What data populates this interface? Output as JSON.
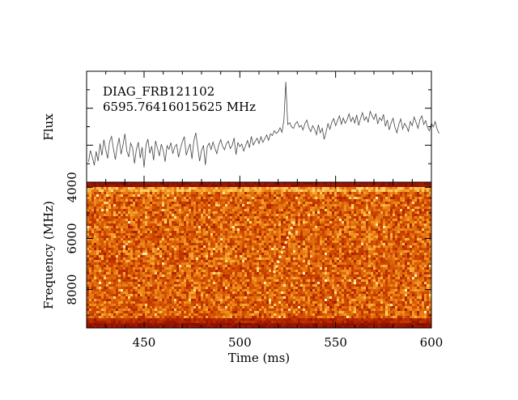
{
  "chart_data": [
    {
      "type": "line",
      "panel": "flux",
      "ylabel": "Flux",
      "annotations": [
        "DIAG_FRB121102",
        "6595.76416015625 MHz"
      ],
      "xlim": [
        420,
        600
      ],
      "x_start": 421,
      "x_step": 1,
      "values": [
        -0.33,
        0.05,
        -0.18,
        -0.45,
        0.02,
        -0.31,
        0.28,
        -0.12,
        0.41,
        0.07,
        -0.22,
        0.35,
        0.52,
        0.11,
        -0.26,
        0.18,
        0.47,
        -0.08,
        0.24,
        0.61,
        0.03,
        -0.17,
        0.29,
        0.14,
        -0.39,
        0.08,
        0.33,
        -0.21,
        0.16,
        -0.52,
        0.22,
        0.43,
        -0.05,
        0.19,
        -0.28,
        0.37,
        0.12,
        -0.14,
        0.26,
        0.05,
        -0.33,
        0.21,
        0.09,
        0.31,
        -0.06,
        0.17,
        0.25,
        -0.18,
        0.12,
        0.34,
        0.51,
        -0.11,
        0.09,
        0.27,
        -0.24,
        0.38,
        0.64,
        0.15,
        -0.31,
        0.05,
        0.22,
        -0.44,
        0.18,
        0.29,
        0.08,
        0.33,
        0.12,
        -0.06,
        0.24,
        0.41,
        0.19,
        0.07,
        0.28,
        0.36,
        0.11,
        0.22,
        0.47,
        -0.09,
        0.31,
        0.18,
        0.26,
        0.03,
        0.21,
        0.38,
        0.14,
        0.52,
        0.23,
        0.35,
        0.46,
        0.28,
        0.51,
        0.32,
        0.44,
        0.57,
        0.39,
        0.61,
        0.55,
        0.71,
        0.62,
        0.68,
        0.81,
        0.66,
        1.08,
        2.35,
        0.92,
        0.98,
        0.84,
        0.79,
        0.95,
        1.02,
        0.83,
        0.89,
        0.74,
        0.96,
        1.07,
        0.81,
        0.68,
        0.88,
        0.77,
        0.58,
        0.91,
        0.64,
        0.79,
        0.42,
        0.66,
        0.95,
        0.76,
        0.99,
        1.12,
        0.88,
        1.05,
        1.21,
        0.93,
        1.14,
        0.96,
        1.08,
        1.28,
        1.02,
        1.16,
        0.97,
        1.24,
        0.89,
        1.11,
        1.32,
        1.06,
        1.18,
        0.99,
        1.36,
        1.22,
        1.09,
        1.29,
        0.94,
        1.15,
        1.05,
        1.26,
        0.86,
        1.07,
        0.74,
        0.98,
        1.13,
        0.82,
        0.64,
        0.93,
        1.11,
        0.77,
        0.96,
        0.85,
        0.69,
        1.02,
        0.88,
        1.17,
        0.99,
        0.79,
        1.08,
        1.21,
        0.92,
        1.05,
        0.81,
        0.71,
        0.96,
        0.84,
        1.02,
        0.76,
        0.62
      ],
      "ylim": [
        -0.8,
        2.6
      ]
    },
    {
      "type": "heatmap",
      "panel": "dynamic-spectrum",
      "xlabel": "Time (ms)",
      "ylabel": "Frequency (MHz)",
      "xlim": [
        420,
        600
      ],
      "ylim": [
        9500,
        3800
      ],
      "xticks": [
        450,
        500,
        550,
        600
      ],
      "yticks": [
        4000,
        6000,
        8000
      ],
      "colormap": [
        "#6b0000",
        "#a81c00",
        "#d04a00",
        "#f0901a",
        "#ffd060",
        "#ffffe0"
      ],
      "burst": {
        "t_top": 528,
        "f_top": 5400,
        "t_bottom": 518,
        "f_bottom": 7300
      }
    }
  ]
}
